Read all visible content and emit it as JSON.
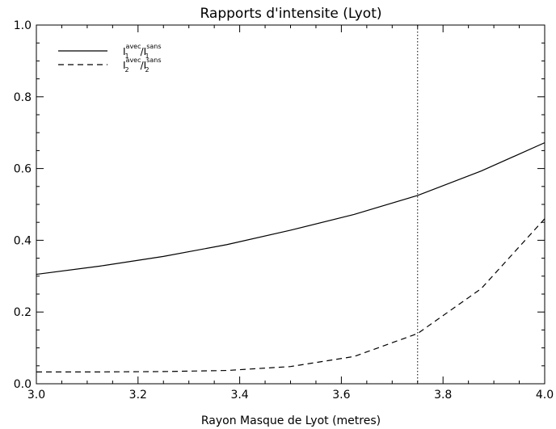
{
  "chart_data": {
    "type": "line",
    "title": "Rapports d'intensite (Lyot)",
    "xlabel": "Rayon Masque de Lyot (metres)",
    "ylabel": "",
    "xlim": [
      3.0,
      4.0
    ],
    "ylim": [
      0.0,
      1.0
    ],
    "x_ticks": [
      "3.0",
      "3.2",
      "3.4",
      "3.6",
      "3.8",
      "4.0"
    ],
    "y_ticks": [
      "0.0",
      "0.2",
      "0.4",
      "0.6",
      "0.8",
      "1.0"
    ],
    "x_tick_values": [
      3.0,
      3.2,
      3.4,
      3.6,
      3.8,
      4.0
    ],
    "y_tick_values": [
      0.0,
      0.2,
      0.4,
      0.6,
      0.8,
      1.0
    ],
    "grid": false,
    "legend_position": "top-left",
    "reference_line": {
      "x": 3.75,
      "style": "dotted"
    },
    "series": [
      {
        "legend": {
          "num": "I",
          "num_sub": "1",
          "num_sup": "avec",
          "den": "I",
          "den_sub": "1",
          "den_sup": "sans"
        },
        "style": "solid",
        "color": "#000000",
        "x": [
          3.0,
          3.125,
          3.25,
          3.375,
          3.5,
          3.625,
          3.75,
          3.875,
          4.0
        ],
        "y": [
          0.305,
          0.328,
          0.355,
          0.388,
          0.428,
          0.472,
          0.525,
          0.593,
          0.672
        ]
      },
      {
        "legend": {
          "num": "I",
          "num_sub": "2",
          "num_sup": "avec",
          "den": "I",
          "den_sub": "2",
          "den_sup": "sans"
        },
        "style": "dashed",
        "color": "#000000",
        "x": [
          3.0,
          3.125,
          3.25,
          3.375,
          3.5,
          3.625,
          3.75,
          3.875,
          4.0
        ],
        "y": [
          0.033,
          0.033,
          0.034,
          0.037,
          0.048,
          0.076,
          0.14,
          0.265,
          0.46
        ]
      }
    ]
  }
}
